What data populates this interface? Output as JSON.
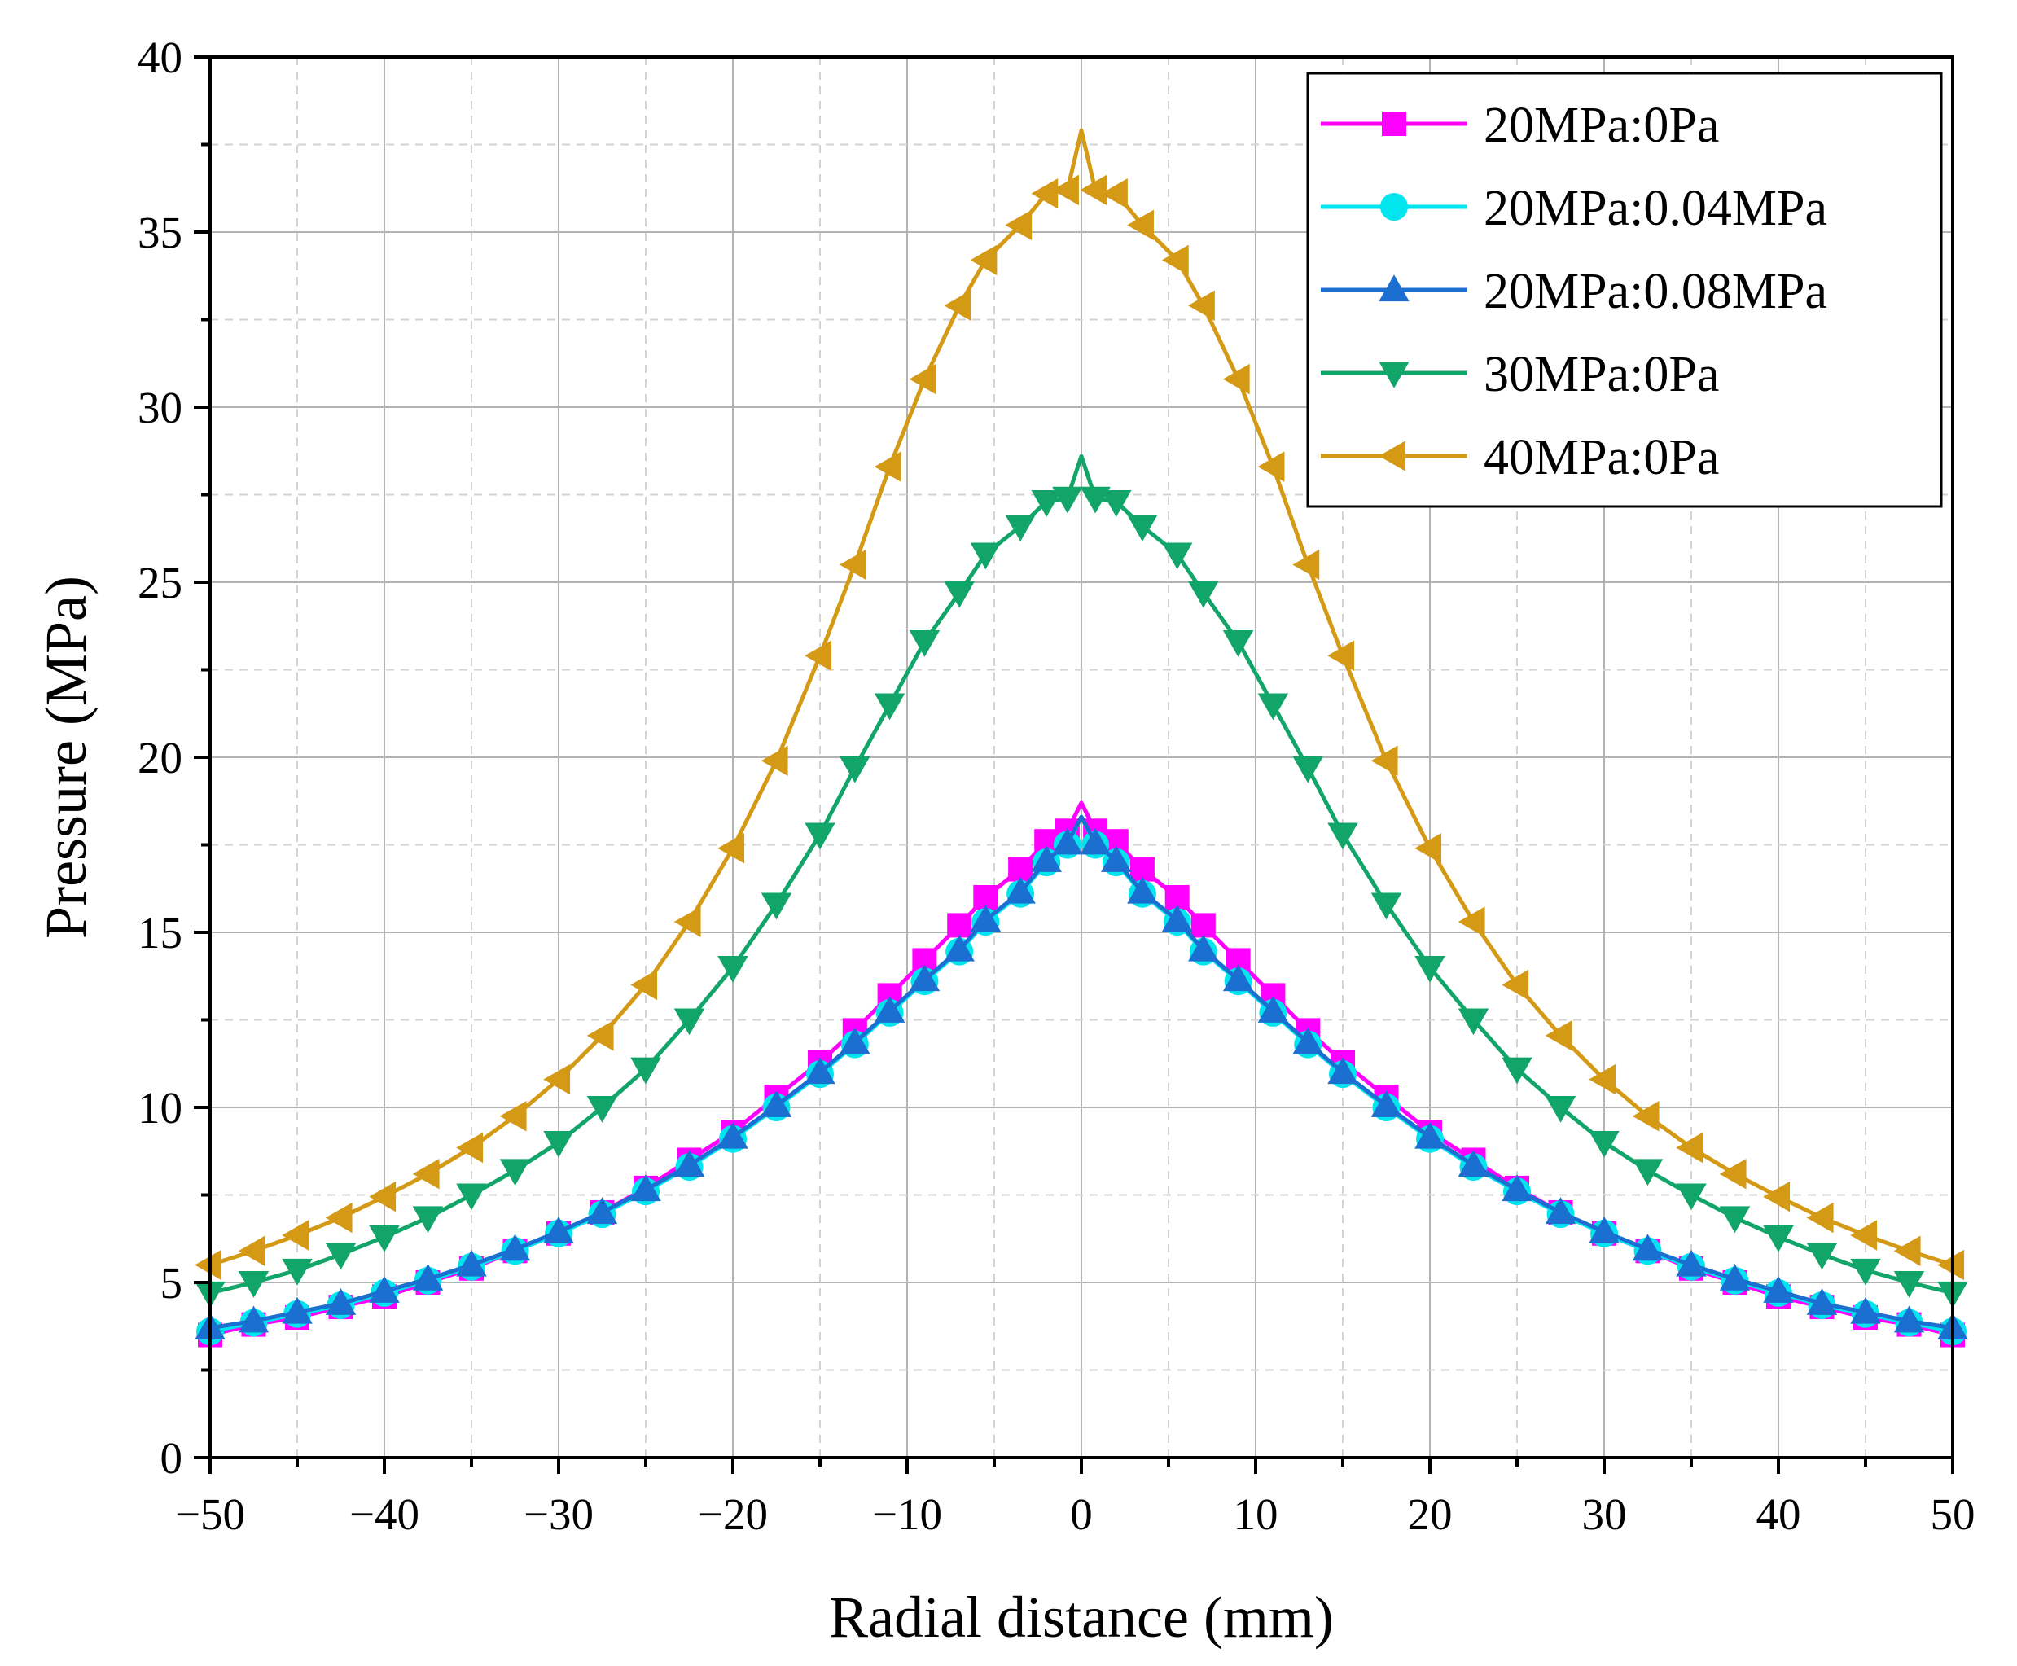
{
  "chart_data": {
    "type": "line",
    "title": "",
    "xlabel": "Radial distance (mm)",
    "ylabel": "Pressure (MPa)",
    "xlim": [
      -50,
      50
    ],
    "ylim": [
      0,
      40
    ],
    "xticks": [
      -50,
      -40,
      -30,
      -20,
      -10,
      0,
      10,
      20,
      30,
      40,
      50
    ],
    "xtick_labels": [
      "−50",
      "−40",
      "−30",
      "−20",
      "−10",
      "0",
      "10",
      "20",
      "30",
      "40",
      "50"
    ],
    "yticks": [
      0,
      5,
      10,
      15,
      20,
      25,
      30,
      35,
      40
    ],
    "ytick_labels": [
      "0",
      "5",
      "10",
      "15",
      "20",
      "25",
      "30",
      "35",
      "40"
    ],
    "grid": true,
    "legend_position": "top-right",
    "x": [
      -50,
      -47.5,
      -45,
      -42.5,
      -40,
      -37.5,
      -35,
      -32.5,
      -30,
      -27.5,
      -25,
      -22.5,
      -20,
      -17.5,
      -15,
      -13,
      -11,
      -9,
      -7,
      -5.5,
      -3.5,
      -2,
      -0.8,
      0,
      0.8,
      2,
      3.5,
      5.5,
      7,
      9,
      11,
      13,
      15,
      17.5,
      20,
      22.5,
      25,
      27.5,
      30,
      32.5,
      35,
      37.5,
      40,
      42.5,
      45,
      47.5,
      50
    ],
    "series": [
      {
        "name": "20MPa:0Pa",
        "color": "#ff00ff",
        "marker": "square",
        "values": [
          3.5,
          3.8,
          4.0,
          4.3,
          4.6,
          5.0,
          5.4,
          5.9,
          6.4,
          7.0,
          7.7,
          8.5,
          9.3,
          10.3,
          11.3,
          12.2,
          13.2,
          14.2,
          15.2,
          16.0,
          16.8,
          17.6,
          17.9,
          18.7,
          17.9,
          17.6,
          16.8,
          16.0,
          15.2,
          14.2,
          13.2,
          12.2,
          11.3,
          10.3,
          9.3,
          8.5,
          7.7,
          7.0,
          6.4,
          5.9,
          5.4,
          5.0,
          4.6,
          4.3,
          4.0,
          3.8,
          3.5
        ]
      },
      {
        "name": "20MPa:0.04MPa",
        "color": "#00e5ee",
        "marker": "circle",
        "values": [
          3.6,
          3.85,
          4.1,
          4.35,
          4.7,
          5.05,
          5.45,
          5.9,
          6.4,
          6.95,
          7.6,
          8.3,
          9.1,
          10.0,
          10.95,
          11.8,
          12.7,
          13.6,
          14.45,
          15.3,
          16.1,
          17.0,
          17.5,
          18.3,
          17.5,
          17.0,
          16.1,
          15.3,
          14.45,
          13.6,
          12.7,
          11.8,
          10.95,
          10.0,
          9.1,
          8.3,
          7.6,
          6.95,
          6.4,
          5.9,
          5.45,
          5.05,
          4.7,
          4.35,
          4.1,
          3.85,
          3.6
        ]
      },
      {
        "name": "20MPa:0.08MPa",
        "color": "#1a6fd1",
        "marker": "triangle-up",
        "values": [
          3.7,
          3.9,
          4.15,
          4.4,
          4.75,
          5.1,
          5.5,
          5.95,
          6.45,
          7.0,
          7.65,
          8.35,
          9.15,
          10.05,
          11.0,
          11.85,
          12.75,
          13.65,
          14.5,
          15.35,
          16.15,
          17.05,
          17.55,
          18.3,
          17.55,
          17.05,
          16.15,
          15.35,
          14.5,
          13.65,
          12.75,
          11.85,
          11.0,
          10.05,
          9.15,
          8.35,
          7.65,
          7.0,
          6.45,
          5.95,
          5.5,
          5.1,
          4.75,
          4.4,
          4.15,
          3.9,
          3.7
        ]
      },
      {
        "name": "30MPa:0Pa",
        "color": "#12a56a",
        "marker": "triangle-down",
        "values": [
          4.7,
          5.0,
          5.35,
          5.8,
          6.3,
          6.85,
          7.5,
          8.2,
          9.0,
          10.0,
          11.1,
          12.5,
          14.0,
          15.8,
          17.8,
          19.7,
          21.5,
          23.3,
          24.7,
          25.8,
          26.6,
          27.3,
          27.4,
          28.6,
          27.4,
          27.3,
          26.6,
          25.8,
          24.7,
          23.3,
          21.5,
          19.7,
          17.8,
          15.8,
          14.0,
          12.5,
          11.1,
          10.0,
          9.0,
          8.2,
          7.5,
          6.85,
          6.3,
          5.8,
          5.35,
          5.0,
          4.7
        ]
      },
      {
        "name": "40MPa:0Pa",
        "color": "#d49a16",
        "marker": "triangle-left",
        "values": [
          5.5,
          5.9,
          6.35,
          6.85,
          7.45,
          8.1,
          8.85,
          9.75,
          10.8,
          12.05,
          13.5,
          15.3,
          17.4,
          19.9,
          22.9,
          25.5,
          28.3,
          30.8,
          32.9,
          34.2,
          35.2,
          36.1,
          36.2,
          37.9,
          36.2,
          36.1,
          35.2,
          34.2,
          32.9,
          30.8,
          28.3,
          25.5,
          22.9,
          19.9,
          17.4,
          15.3,
          13.5,
          12.05,
          10.8,
          9.75,
          8.85,
          8.1,
          7.45,
          6.85,
          6.35,
          5.9,
          5.5
        ]
      }
    ]
  }
}
